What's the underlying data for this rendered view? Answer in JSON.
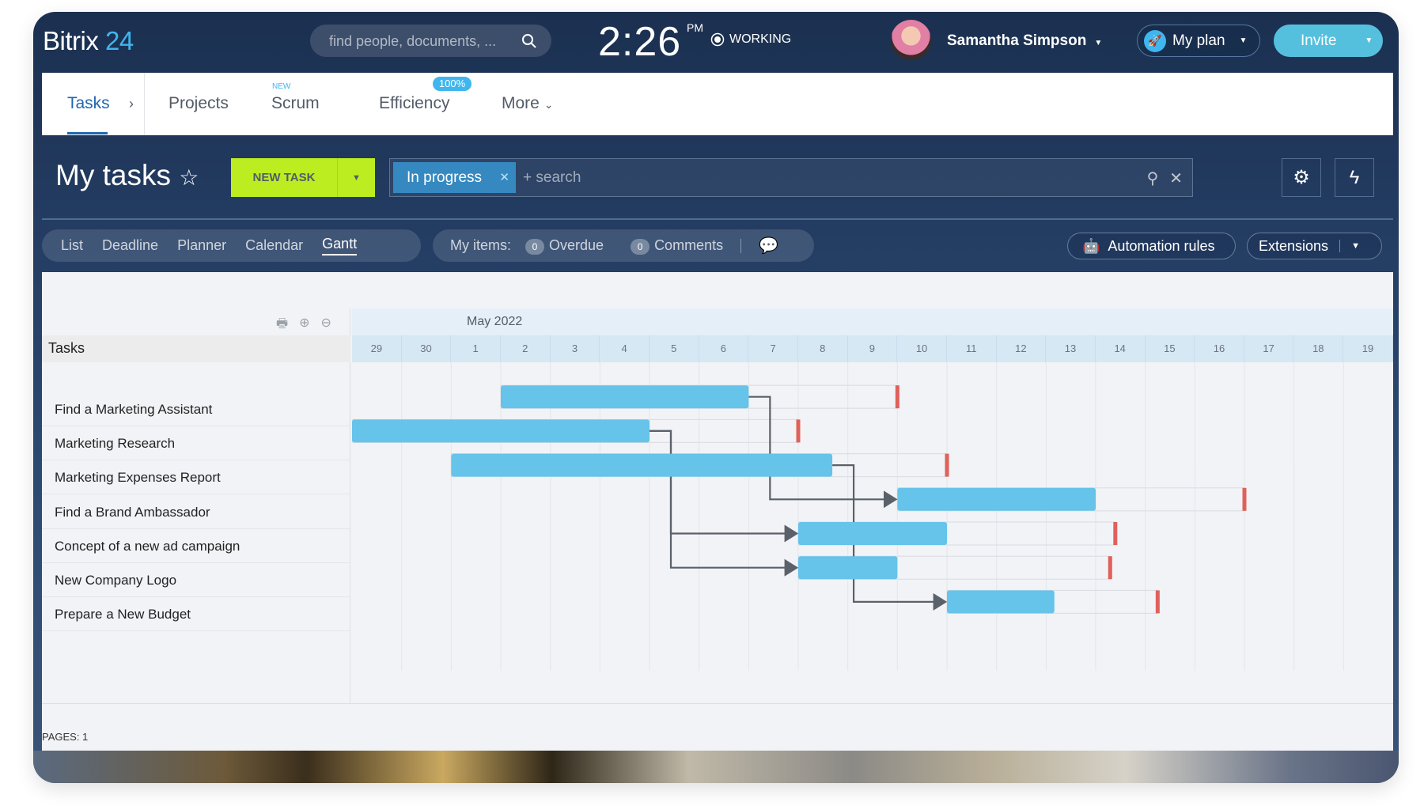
{
  "header": {
    "logo_main": "Bitrix",
    "logo_num": "24",
    "search_placeholder": "find people, documents, ...",
    "clock": "2:26",
    "clock_suffix": "PM",
    "status": "WORKING",
    "user_name": "Samantha Simpson",
    "plan_label": "My plan",
    "invite_label": "Invite"
  },
  "nav": {
    "items": [
      {
        "label": "Tasks"
      },
      {
        "label": "Projects"
      },
      {
        "label": "Scrum",
        "tag": "NEW"
      },
      {
        "label": "Efficiency",
        "badge": "100%"
      },
      {
        "label": "More"
      }
    ]
  },
  "toolbar": {
    "title": "My tasks",
    "new_task": "NEW TASK",
    "filter_chip": "In progress",
    "search_placeholder": "+ search"
  },
  "views": {
    "items": [
      "List",
      "Deadline",
      "Planner",
      "Calendar",
      "Gantt"
    ],
    "active": "Gantt"
  },
  "my_items": {
    "label": "My items:",
    "overdue_count": "0",
    "overdue_label": "Overdue",
    "comments_count": "0",
    "comments_label": "Comments"
  },
  "buttons": {
    "automation": "Automation rules",
    "extensions": "Extensions"
  },
  "gantt": {
    "tasks_header": "Tasks",
    "month": "May 2022",
    "days": [
      "29",
      "30",
      "1",
      "2",
      "3",
      "4",
      "5",
      "6",
      "7",
      "8",
      "9",
      "10",
      "11",
      "12",
      "13",
      "14",
      "15",
      "16",
      "17",
      "18",
      "19"
    ],
    "timeline_start": "2022-04-29",
    "tasks": [
      {
        "name": "Find a Marketing Assistant",
        "start": "2022-05-02T00:00",
        "end": "2022-05-07T00:00",
        "deadline": "2022-05-10T00:00"
      },
      {
        "name": "Marketing Research",
        "start": "2022-04-29T00:00",
        "end": "2022-05-05T00:00",
        "deadline": "2022-05-08T00:00"
      },
      {
        "name": "Marketing Expenses Report",
        "start": "2022-05-01T00:00",
        "end": "2022-05-08T16:30",
        "deadline": "2022-05-11T00:00"
      },
      {
        "name": "Find a Brand Ambassador",
        "start": "2022-05-10T00:00",
        "end": "2022-05-14T00:00",
        "deadline": "2022-05-17T00:00"
      },
      {
        "name": "Concept of a new ad campaign",
        "start": "2022-05-08T00:00",
        "end": "2022-05-11T00:00",
        "deadline": "2022-05-14T09:30"
      },
      {
        "name": "New Company Logo",
        "start": "2022-05-08T00:00",
        "end": "2022-05-10T00:00",
        "deadline": "2022-05-14T07:00"
      },
      {
        "name": "Prepare a New Budget",
        "start": "2022-05-11T00:00",
        "end": "2022-05-13T04:00",
        "deadline": "2022-05-15T06:00"
      }
    ],
    "dependencies": [
      [
        0,
        3
      ],
      [
        1,
        4
      ],
      [
        1,
        5
      ],
      [
        2,
        6
      ]
    ],
    "colors": {
      "bar": "#66c3ea",
      "deadline": "#e0605a",
      "link": "#5b6169"
    }
  },
  "footer": {
    "pages": "PAGES:  1"
  }
}
